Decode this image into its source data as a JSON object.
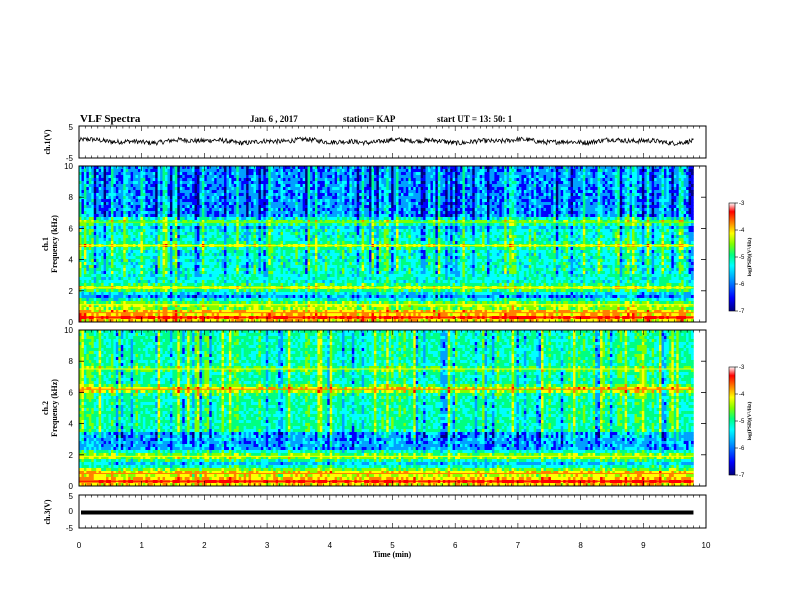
{
  "header": {
    "title": "VLF Spectra",
    "date": "Jan. 6 , 2017",
    "station": "station= KAP",
    "start": "start UT = 13: 50: 1"
  },
  "colors": {
    "colormap": [
      "#000080",
      "#0000ff",
      "#00a0ff",
      "#00ffff",
      "#00ff80",
      "#80ff00",
      "#ffff00",
      "#ff8000",
      "#ff0000",
      "#ffffff"
    ],
    "trace": "#000000"
  },
  "chart_data": [
    {
      "type": "line",
      "name": "ch1-waveform",
      "ylabel": "ch.1(V)",
      "ylim": [
        -5,
        5
      ],
      "yticks": [
        "5",
        "-5"
      ],
      "xlim": [
        0,
        10
      ],
      "description_values": "noisy waveform oscillating roughly between -1.5 and 2 V"
    },
    {
      "type": "heatmap",
      "name": "ch1-spectrogram",
      "ylabel_top": "ch.1",
      "ylabel_bottom": "Frequency (kHz)",
      "ylim": [
        0,
        10
      ],
      "yticks": [
        "0",
        "2",
        "4",
        "6",
        "8",
        "10"
      ],
      "xlim": [
        0,
        10
      ],
      "data_end_min": 9.8,
      "colorbar": {
        "label": "log(PSD)(V²/Hz)",
        "range": [
          -7,
          -3
        ],
        "ticks": [
          "-3",
          "-4",
          "-5",
          "-6",
          "-7"
        ]
      },
      "bands_khz": [
        {
          "f": 0.3,
          "level": -3.2
        },
        {
          "f": 0.6,
          "level": -3.6
        },
        {
          "f": 1.1,
          "level": -4.2
        },
        {
          "f": 2.2,
          "level": -4.3
        },
        {
          "f": 4.9,
          "level": -4.5
        },
        {
          "f": 6.4,
          "level": -4.6
        }
      ]
    },
    {
      "type": "heatmap",
      "name": "ch2-spectrogram",
      "ylabel_top": "ch.2",
      "ylabel_bottom": "Frequency (kHz)",
      "ylim": [
        0,
        10
      ],
      "yticks": [
        "0",
        "2",
        "4",
        "6",
        "8",
        "10"
      ],
      "xlim": [
        0,
        10
      ],
      "data_end_min": 9.8,
      "colorbar": {
        "label": "log(PSD)(V²/Hz)",
        "range": [
          -7,
          -3
        ],
        "ticks": [
          "-3",
          "-4",
          "-5",
          "-6",
          "-7"
        ]
      },
      "bands_khz": [
        {
          "f": 0.3,
          "level": -3.2
        },
        {
          "f": 0.8,
          "level": -3.7
        },
        {
          "f": 1.9,
          "level": -4.2
        },
        {
          "f": 6.2,
          "level": -3.9
        },
        {
          "f": 7.5,
          "level": -4.5
        }
      ]
    },
    {
      "type": "line",
      "name": "ch3-waveform",
      "ylabel": "ch.3(V)",
      "ylim": [
        -5,
        5
      ],
      "yticks": [
        "5",
        "0",
        "-5"
      ],
      "xlim": [
        0,
        10
      ],
      "constant_value": 0,
      "xlabel": "Time (min)",
      "xticks": [
        "0",
        "1",
        "2",
        "3",
        "4",
        "5",
        "6",
        "7",
        "8",
        "9",
        "10"
      ]
    }
  ]
}
